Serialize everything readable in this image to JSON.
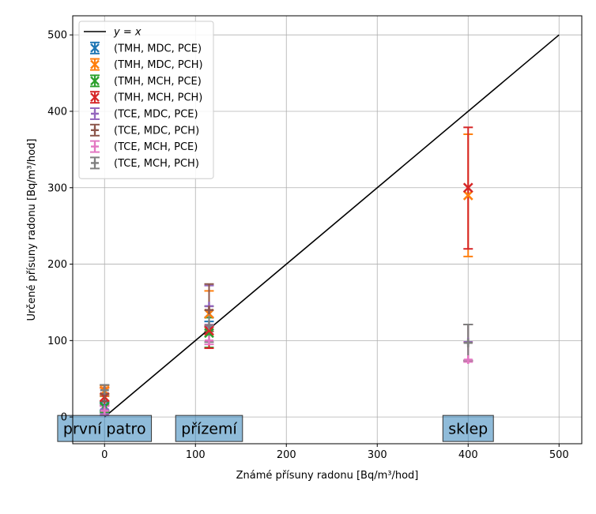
{
  "chart_data": {
    "type": "scatter",
    "xlabel": "Známé přísuny radonu [Bq/m³/hod]",
    "ylabel": "Určené přísuny radonu [Bq/m³/hod]",
    "xlim": [
      -35,
      525
    ],
    "ylim": [
      -35,
      525
    ],
    "xticks": [
      0,
      100,
      200,
      300,
      400,
      500
    ],
    "yticks": [
      0,
      100,
      200,
      300,
      400,
      500
    ],
    "grid": true,
    "legend_position": "top-left",
    "reference_line": {
      "name": "y = x",
      "x": [
        0,
        500
      ],
      "y": [
        0,
        500
      ],
      "color": "#000000"
    },
    "series": [
      {
        "name": "(TMH, MDC, PCE)",
        "marker": "x",
        "color": "#1f77b4",
        "points": [
          {
            "x": 0,
            "y": 14,
            "low": 7,
            "high": 21
          },
          {
            "x": 115,
            "y": 135,
            "low": 125,
            "high": 145
          }
        ]
      },
      {
        "name": "(TMH, MDC, PCH)",
        "marker": "x",
        "color": "#ff7f0e",
        "points": [
          {
            "x": 0,
            "y": 34,
            "low": 27,
            "high": 41
          },
          {
            "x": 115,
            "y": 135,
            "low": 108,
            "high": 165
          },
          {
            "x": 400,
            "y": 290,
            "low": 210,
            "high": 370
          }
        ]
      },
      {
        "name": "(TMH, MCH, PCE)",
        "marker": "x",
        "color": "#2ca02c",
        "points": [
          {
            "x": 0,
            "y": 13,
            "low": 6,
            "high": 20
          },
          {
            "x": 115,
            "y": 110,
            "low": 91,
            "high": 130
          }
        ]
      },
      {
        "name": "(TMH, MCH, PCH)",
        "marker": "x",
        "color": "#d62728",
        "points": [
          {
            "x": 0,
            "y": 26,
            "low": 15,
            "high": 38
          },
          {
            "x": 115,
            "y": 113,
            "low": 90,
            "high": 120
          },
          {
            "x": 400,
            "y": 300,
            "low": 220,
            "high": 379
          }
        ]
      },
      {
        "name": "(TCE, MDC, PCE)",
        "marker": "+",
        "color": "#9467bd",
        "points": [
          {
            "x": 0,
            "y": 10,
            "low": 4,
            "high": 16
          },
          {
            "x": 115,
            "y": 145,
            "low": 118,
            "high": 172
          },
          {
            "x": 400,
            "y": 98,
            "low": 74,
            "high": 121
          }
        ]
      },
      {
        "name": "(TCE, MDC, PCH)",
        "marker": "+",
        "color": "#8c564b",
        "points": [
          {
            "x": 0,
            "y": 30,
            "low": 20,
            "high": 42
          },
          {
            "x": 115,
            "y": 140,
            "low": 112,
            "high": 174
          },
          {
            "x": 400,
            "y": 97,
            "low": 73,
            "high": 121
          }
        ]
      },
      {
        "name": "(TCE, MCH, PCE)",
        "marker": "+",
        "color": "#e377c2",
        "points": [
          {
            "x": 0,
            "y": 8,
            "low": 2,
            "high": 14
          },
          {
            "x": 115,
            "y": 100,
            "low": 95,
            "high": 121
          },
          {
            "x": 400,
            "y": 75,
            "low": 72,
            "high": 98
          }
        ]
      },
      {
        "name": "(TCE, MCH, PCH)",
        "marker": "+",
        "color": "#7f7f7f",
        "points": [
          {
            "x": 0,
            "y": 35,
            "low": 28,
            "high": 42
          },
          {
            "x": 115,
            "y": 120,
            "low": 98,
            "high": 145
          },
          {
            "x": 400,
            "y": 97,
            "low": 74,
            "high": 121
          }
        ]
      }
    ],
    "annotations": [
      {
        "text": "první patro",
        "x": 0,
        "y": -15
      },
      {
        "text": "přízemí",
        "x": 115,
        "y": -15
      },
      {
        "text": "sklep",
        "x": 400,
        "y": -15
      }
    ]
  }
}
